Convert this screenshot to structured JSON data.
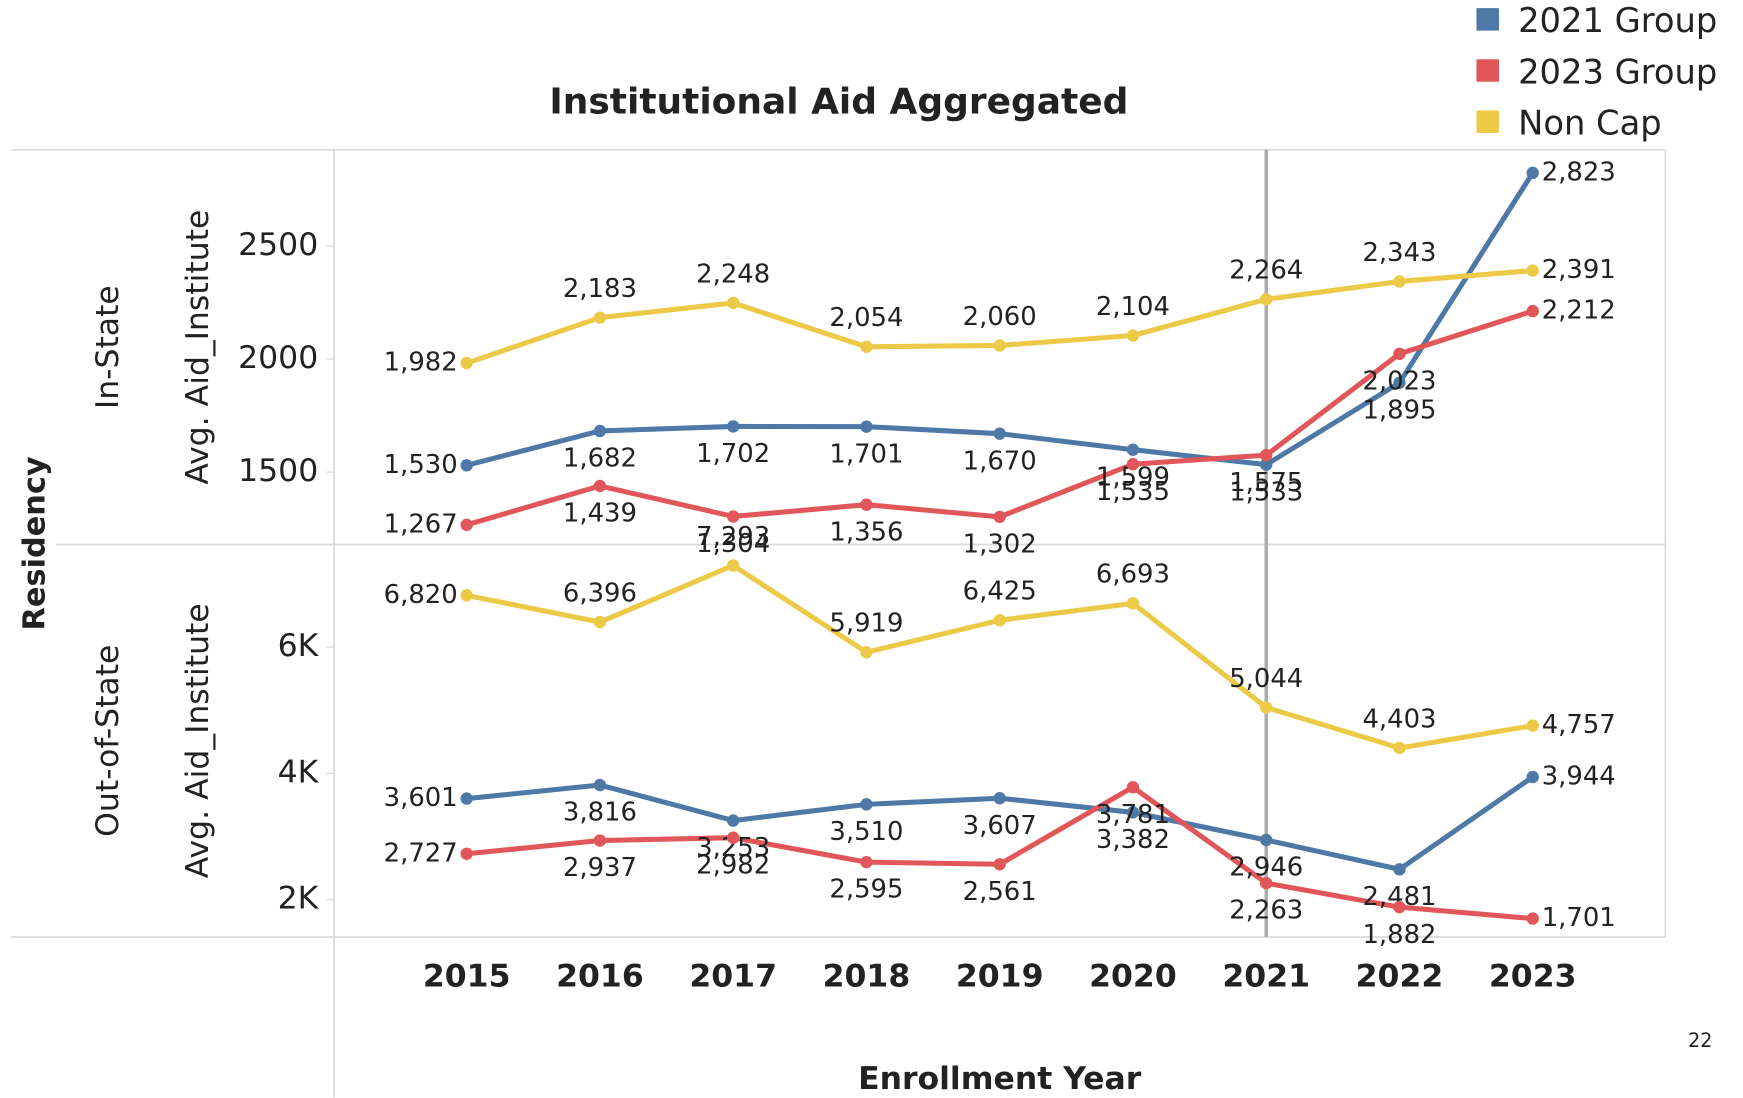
{
  "title": "Institutional Aid Aggregated",
  "x_label": "Enrollment Year",
  "facet_label": "Residency",
  "page_number": "22",
  "chart_data": [
    {
      "type": "line",
      "facet": "In-State",
      "ylabel": "Avg. Aid_Institute",
      "categories": [
        "2015",
        "2016",
        "2017",
        "2018",
        "2019",
        "2020",
        "2021",
        "2022",
        "2023"
      ],
      "ylim": [
        1180,
        2925
      ],
      "yticks": [
        1500,
        2000,
        2500
      ],
      "series": [
        {
          "name": "2021 Group",
          "color": "#4e79a7",
          "values": [
            1530,
            1682,
            1702,
            1701,
            1670,
            1599,
            1533,
            1895,
            2823
          ],
          "value_labels": [
            "1,530",
            "1,682",
            "1,702",
            "1,701",
            "1,670",
            "1,599",
            "1,533",
            "1,895",
            "2,823"
          ]
        },
        {
          "name": "2023 Group",
          "color": "#e15759",
          "values": [
            1267,
            1439,
            1304,
            1356,
            1302,
            1535,
            1575,
            2023,
            2212
          ],
          "value_labels": [
            "1,267",
            "1,439",
            "1,304",
            "1,356",
            "1,302",
            "1,535",
            "1,575",
            "2,023",
            "2,212"
          ]
        },
        {
          "name": "Non Cap",
          "color": "#edc948",
          "values": [
            1982,
            2183,
            2248,
            2054,
            2060,
            2104,
            2264,
            2343,
            2391
          ],
          "value_labels": [
            "1,982",
            "2,183",
            "2,248",
            "2,054",
            "2,060",
            "2,104",
            "2,264",
            "2,343",
            "2,391"
          ]
        }
      ]
    },
    {
      "type": "line",
      "facet": "Out-of-State",
      "ylabel": "Avg. Aid_Institute",
      "categories": [
        "2015",
        "2016",
        "2017",
        "2018",
        "2019",
        "2020",
        "2021",
        "2022",
        "2023"
      ],
      "ylim": [
        1410,
        7625
      ],
      "yticks": [
        {
          "value": 2000,
          "label": "2K"
        },
        {
          "value": 4000,
          "label": "4K"
        },
        {
          "value": 6000,
          "label": "6K"
        }
      ],
      "series": [
        {
          "name": "2021 Group",
          "color": "#4e79a7",
          "values": [
            3601,
            3816,
            3253,
            3510,
            3607,
            3382,
            2946,
            2481,
            3944
          ],
          "value_labels": [
            "3,601",
            "3,816",
            "3,253",
            "3,510",
            "3,607",
            "3,382",
            "2,946",
            "2,481",
            "3,944"
          ]
        },
        {
          "name": "2023 Group",
          "color": "#e15759",
          "values": [
            2727,
            2937,
            2982,
            2595,
            2561,
            3781,
            2263,
            1882,
            1701
          ],
          "value_labels": [
            "2,727",
            "2,937",
            "2,982",
            "2,595",
            "2,561",
            "3,781",
            "2,263",
            "1,882",
            "1,701"
          ]
        },
        {
          "name": "Non Cap",
          "color": "#edc948",
          "values": [
            6820,
            6396,
            7293,
            5919,
            6425,
            6693,
            5044,
            4403,
            4757
          ],
          "value_labels": [
            "6,820",
            "6,396",
            "7,293",
            "5,919",
            "6,425",
            "6,693",
            "5,044",
            "4,403",
            "4,757"
          ]
        }
      ]
    }
  ]
}
